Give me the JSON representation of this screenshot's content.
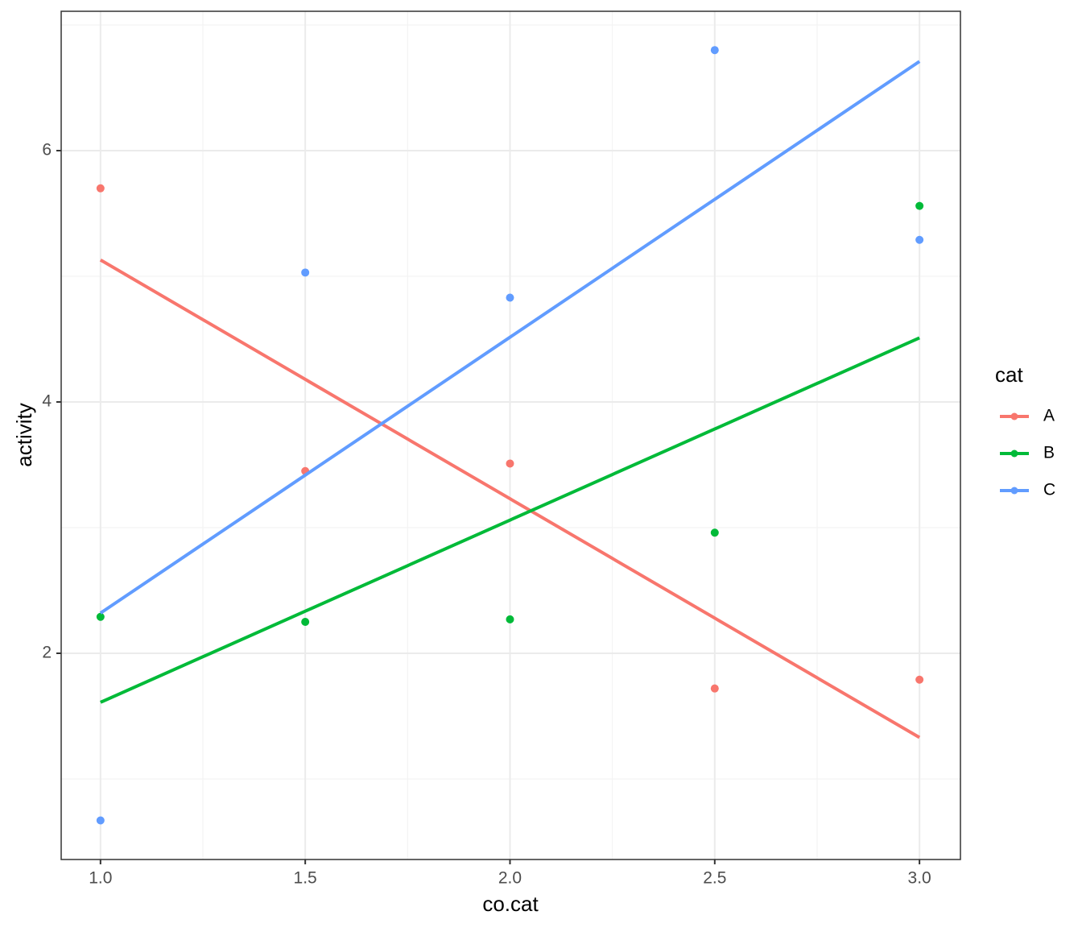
{
  "chart_data": {
    "type": "scatter",
    "x_label": "co.cat",
    "y_label": "activity",
    "x": [
      1,
      1.5,
      2,
      2.5,
      3
    ],
    "series": [
      {
        "name": "A",
        "color": "#F8766D",
        "values": [
          5.7,
          3.45,
          3.51,
          1.72,
          1.79
        ],
        "fit": [
          5.13,
          1.33
        ]
      },
      {
        "name": "B",
        "color": "#00BA38",
        "values": [
          2.29,
          2.25,
          2.27,
          2.96,
          5.56
        ],
        "fit": [
          1.61,
          4.51
        ]
      },
      {
        "name": "C",
        "color": "#619CFF",
        "values": [
          0.67,
          5.03,
          4.83,
          6.8,
          5.29
        ],
        "fit": [
          2.32,
          6.71
        ]
      }
    ],
    "fit_x": [
      1,
      3
    ],
    "legend_title": "cat",
    "legend_position": "right",
    "xlim": [
      0.904,
      3.1
    ],
    "ylim": [
      0.359,
      7.109
    ],
    "xticks": [
      {
        "value": 1,
        "label": "1.0"
      },
      {
        "value": 1.5,
        "label": "1.5"
      },
      {
        "value": 2,
        "label": "2.0"
      },
      {
        "value": 2.5,
        "label": "2.5"
      },
      {
        "value": 3,
        "label": "3.0"
      }
    ],
    "yticks": [
      2,
      4,
      6
    ],
    "x_minor_grid": [
      1.25,
      1.75,
      2.25,
      2.75
    ],
    "y_minor_grid": [
      1,
      3,
      5,
      7
    ],
    "grid": true
  }
}
